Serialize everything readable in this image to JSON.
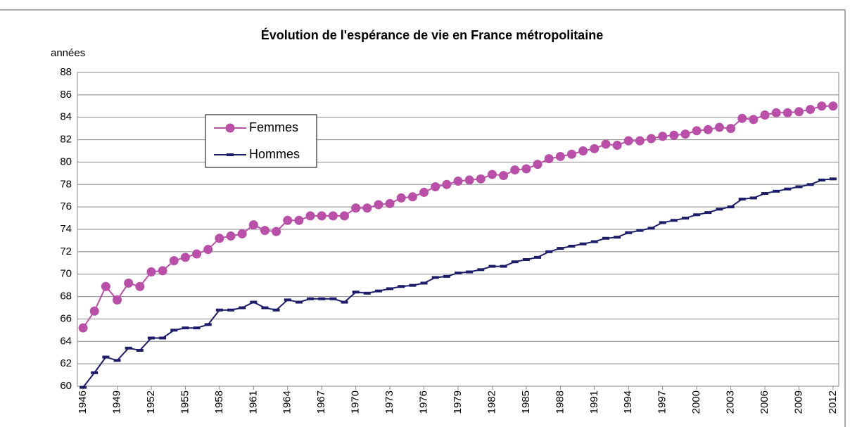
{
  "chart_data": {
    "type": "line",
    "title": "Évolution de l'espérance de vie en France métropolitaine",
    "ylabel": "années",
    "x": [
      1946,
      1947,
      1948,
      1949,
      1950,
      1951,
      1952,
      1953,
      1954,
      1955,
      1956,
      1957,
      1958,
      1959,
      1960,
      1961,
      1962,
      1963,
      1964,
      1965,
      1966,
      1967,
      1968,
      1969,
      1970,
      1971,
      1972,
      1973,
      1974,
      1975,
      1976,
      1977,
      1978,
      1979,
      1980,
      1981,
      1982,
      1983,
      1984,
      1985,
      1986,
      1987,
      1988,
      1989,
      1990,
      1991,
      1992,
      1993,
      1994,
      1995,
      1996,
      1997,
      1998,
      1999,
      2000,
      2001,
      2002,
      2003,
      2004,
      2005,
      2006,
      2007,
      2008,
      2009,
      2010,
      2011,
      2012
    ],
    "xlim": [
      1945.5,
      2012.5
    ],
    "xticks": [
      1946,
      1949,
      1952,
      1955,
      1958,
      1961,
      1964,
      1967,
      1970,
      1973,
      1976,
      1979,
      1982,
      1985,
      1988,
      1991,
      1994,
      1997,
      2000,
      2003,
      2006,
      2009,
      2012
    ],
    "ylim": [
      60,
      88
    ],
    "yticks": [
      60,
      62,
      64,
      66,
      68,
      70,
      72,
      74,
      76,
      78,
      80,
      82,
      84,
      86,
      88
    ],
    "grid": true,
    "legend": "upper left",
    "series": [
      {
        "name": "Femmes",
        "color": "#b94fa8",
        "marker": "circle",
        "values": [
          65.2,
          66.7,
          68.9,
          67.7,
          69.2,
          68.9,
          70.2,
          70.3,
          71.2,
          71.5,
          71.8,
          72.2,
          73.2,
          73.4,
          73.6,
          74.4,
          73.9,
          73.8,
          74.8,
          74.8,
          75.2,
          75.2,
          75.2,
          75.2,
          75.9,
          75.9,
          76.2,
          76.3,
          76.8,
          76.9,
          77.3,
          77.8,
          78.0,
          78.3,
          78.4,
          78.5,
          78.9,
          78.8,
          79.3,
          79.4,
          79.8,
          80.3,
          80.5,
          80.7,
          81.0,
          81.2,
          81.6,
          81.5,
          81.9,
          81.9,
          82.1,
          82.3,
          82.4,
          82.5,
          82.8,
          82.9,
          83.1,
          83.0,
          83.9,
          83.8,
          84.2,
          84.4,
          84.4,
          84.5,
          84.7,
          85.0,
          85.0
        ]
      },
      {
        "name": "Hommes",
        "color": "#1c1c6b",
        "marker": "dash",
        "values": [
          59.9,
          61.2,
          62.6,
          62.3,
          63.4,
          63.2,
          64.3,
          64.3,
          65.0,
          65.2,
          65.2,
          65.5,
          66.8,
          66.8,
          67.0,
          67.5,
          67.0,
          66.8,
          67.7,
          67.5,
          67.8,
          67.8,
          67.8,
          67.5,
          68.4,
          68.3,
          68.5,
          68.7,
          68.9,
          69.0,
          69.2,
          69.7,
          69.8,
          70.1,
          70.2,
          70.4,
          70.7,
          70.7,
          71.1,
          71.3,
          71.5,
          72.0,
          72.3,
          72.5,
          72.7,
          72.9,
          73.2,
          73.3,
          73.7,
          73.9,
          74.1,
          74.6,
          74.8,
          75.0,
          75.3,
          75.5,
          75.8,
          76.0,
          76.7,
          76.8,
          77.2,
          77.4,
          77.6,
          77.8,
          78.0,
          78.4,
          78.5
        ]
      }
    ]
  }
}
